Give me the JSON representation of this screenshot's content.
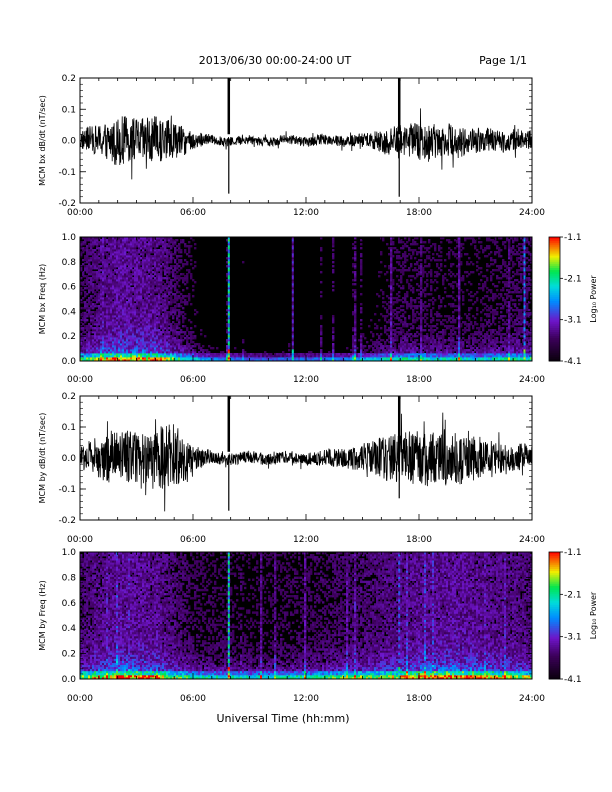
{
  "header": {
    "date_range": "2013/06/30  00:00-24:00 UT",
    "page": "Page 1/1"
  },
  "xlabel": "Universal Time (hh:mm)",
  "colorbar": {
    "label": "Log₁₀ Power",
    "ticks": [
      "-1.1",
      "-2.1",
      "-3.1",
      "-4.1"
    ],
    "range": [
      -4.1,
      -1.1
    ]
  },
  "chart_data": [
    {
      "type": "line",
      "ylabel": "MCM bx dB/dt (nT/sec)",
      "xlim": [
        0,
        24
      ],
      "ylim": [
        -0.2,
        0.2
      ],
      "x_ticks": [
        "00:00",
        "06:00",
        "12:00",
        "18:00",
        "24:00"
      ],
      "y_ticks": [
        "0.2",
        "0.1",
        "0.0",
        "-0.1",
        "-0.2"
      ],
      "envelope": [
        {
          "t": 0,
          "amp": 0.03
        },
        {
          "t": 1,
          "amp": 0.05
        },
        {
          "t": 2,
          "amp": 0.08
        },
        {
          "t": 3,
          "amp": 0.07
        },
        {
          "t": 4,
          "amp": 0.08
        },
        {
          "t": 5,
          "amp": 0.06
        },
        {
          "t": 6,
          "amp": 0.03
        },
        {
          "t": 7,
          "amp": 0.015
        },
        {
          "t": 9,
          "amp": 0.015
        },
        {
          "t": 12,
          "amp": 0.015
        },
        {
          "t": 15,
          "amp": 0.02
        },
        {
          "t": 16,
          "amp": 0.04
        },
        {
          "t": 18,
          "amp": 0.06
        },
        {
          "t": 20,
          "amp": 0.05
        },
        {
          "t": 22,
          "amp": 0.035
        },
        {
          "t": 24,
          "amp": 0.03
        }
      ],
      "spikes": [
        {
          "t": 7.9,
          "max": 0.2,
          "min": -0.17
        },
        {
          "t": 16.95,
          "max": 0.2,
          "min": -0.18
        }
      ]
    },
    {
      "type": "heatmap",
      "ylabel": "MCM bx Freq (Hz)",
      "xlim": [
        0,
        24
      ],
      "ylim": [
        0.0,
        1.0
      ],
      "x_ticks": [
        "00:00",
        "06:00",
        "12:00",
        "18:00",
        "24:00"
      ],
      "y_ticks": [
        "1.0",
        "0.8",
        "0.6",
        "0.4",
        "0.2",
        "0.0"
      ],
      "activity": [
        {
          "t": 0,
          "level": 0.55
        },
        {
          "t": 2,
          "level": 0.8
        },
        {
          "t": 4,
          "level": 0.75
        },
        {
          "t": 5.5,
          "level": 0.5
        },
        {
          "t": 7,
          "level": 0.3
        },
        {
          "t": 10,
          "level": 0.25
        },
        {
          "t": 14,
          "level": 0.28
        },
        {
          "t": 17,
          "level": 0.5
        },
        {
          "t": 21,
          "level": 0.45
        },
        {
          "t": 24,
          "level": 0.55
        }
      ],
      "lines": [
        {
          "t": 7.9,
          "level": 1.0
        },
        {
          "t": 11.3,
          "level": 0.5
        },
        {
          "t": 23.6,
          "level": 0.7
        }
      ]
    },
    {
      "type": "line",
      "ylabel": "MCM by dB/dt (nT/sec)",
      "xlim": [
        0,
        24
      ],
      "ylim": [
        -0.2,
        0.2
      ],
      "x_ticks": [
        "00:00",
        "06:00",
        "12:00",
        "18:00",
        "24:00"
      ],
      "y_ticks": [
        "0.2",
        "0.1",
        "0.0",
        "-0.1",
        "-0.2"
      ],
      "envelope": [
        {
          "t": 0,
          "amp": 0.04
        },
        {
          "t": 1,
          "amp": 0.07
        },
        {
          "t": 2,
          "amp": 0.09
        },
        {
          "t": 3,
          "amp": 0.08
        },
        {
          "t": 4,
          "amp": 0.1
        },
        {
          "t": 5,
          "amp": 0.11
        },
        {
          "t": 6,
          "amp": 0.04
        },
        {
          "t": 7,
          "amp": 0.02
        },
        {
          "t": 9,
          "amp": 0.02
        },
        {
          "t": 12,
          "amp": 0.02
        },
        {
          "t": 15,
          "amp": 0.04
        },
        {
          "t": 16,
          "amp": 0.07
        },
        {
          "t": 18,
          "amp": 0.09
        },
        {
          "t": 20,
          "amp": 0.09
        },
        {
          "t": 22,
          "amp": 0.05
        },
        {
          "t": 24,
          "amp": 0.04
        }
      ],
      "spikes": [
        {
          "t": 7.9,
          "max": 0.2,
          "min": -0.17
        },
        {
          "t": 16.95,
          "max": 0.2,
          "min": -0.13
        }
      ]
    },
    {
      "type": "heatmap",
      "ylabel": "MCM by Freq (Hz)",
      "xlim": [
        0,
        24
      ],
      "ylim": [
        0.0,
        1.0
      ],
      "x_ticks": [
        "00:00",
        "06:00",
        "12:00",
        "18:00",
        "24:00"
      ],
      "y_ticks": [
        "1.0",
        "0.8",
        "0.6",
        "0.4",
        "0.2",
        "0.0"
      ],
      "activity": [
        {
          "t": 0,
          "level": 0.6
        },
        {
          "t": 2,
          "level": 0.8
        },
        {
          "t": 4,
          "level": 0.75
        },
        {
          "t": 6,
          "level": 0.5
        },
        {
          "t": 9,
          "level": 0.45
        },
        {
          "t": 12,
          "level": 0.5
        },
        {
          "t": 15,
          "level": 0.6
        },
        {
          "t": 18,
          "level": 0.75
        },
        {
          "t": 20,
          "level": 0.8
        },
        {
          "t": 24,
          "level": 0.65
        }
      ],
      "lines": [
        {
          "t": 7.9,
          "level": 1.0
        },
        {
          "t": 16.95,
          "level": 0.6
        }
      ]
    }
  ]
}
